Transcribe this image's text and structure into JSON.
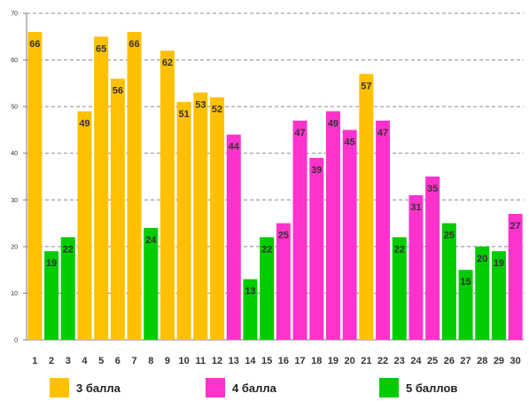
{
  "chart_data": {
    "type": "bar",
    "categories": [
      "1",
      "2",
      "3",
      "4",
      "5",
      "6",
      "7",
      "8",
      "9",
      "10",
      "11",
      "12",
      "13",
      "14",
      "15",
      "16",
      "17",
      "18",
      "19",
      "20",
      "21",
      "22",
      "23",
      "24",
      "25",
      "26",
      "27",
      "28",
      "29",
      "30"
    ],
    "values": [
      66,
      19,
      22,
      49,
      65,
      56,
      66,
      24,
      62,
      51,
      53,
      52,
      44,
      13,
      22,
      25,
      47,
      39,
      49,
      45,
      57,
      47,
      22,
      31,
      35,
      25,
      15,
      20,
      19,
      27
    ],
    "groups": [
      3,
      5,
      5,
      3,
      3,
      3,
      3,
      5,
      3,
      3,
      3,
      3,
      4,
      5,
      5,
      4,
      4,
      4,
      4,
      4,
      3,
      4,
      5,
      4,
      4,
      5,
      5,
      5,
      5,
      4
    ],
    "series": [
      {
        "name": "3 балла",
        "group": 3,
        "color": "#FFC000"
      },
      {
        "name": "4 балла",
        "group": 4,
        "color": "#FF33CC"
      },
      {
        "name": "5 баллов",
        "group": 5,
        "color": "#00CC00"
      }
    ],
    "yticks": [
      0,
      10,
      20,
      30,
      40,
      50,
      60,
      70
    ],
    "ylim": [
      0,
      70
    ],
    "title": "",
    "xlabel": "",
    "ylabel": "",
    "grid": "horizontal dashed",
    "legend_position": "bottom"
  }
}
